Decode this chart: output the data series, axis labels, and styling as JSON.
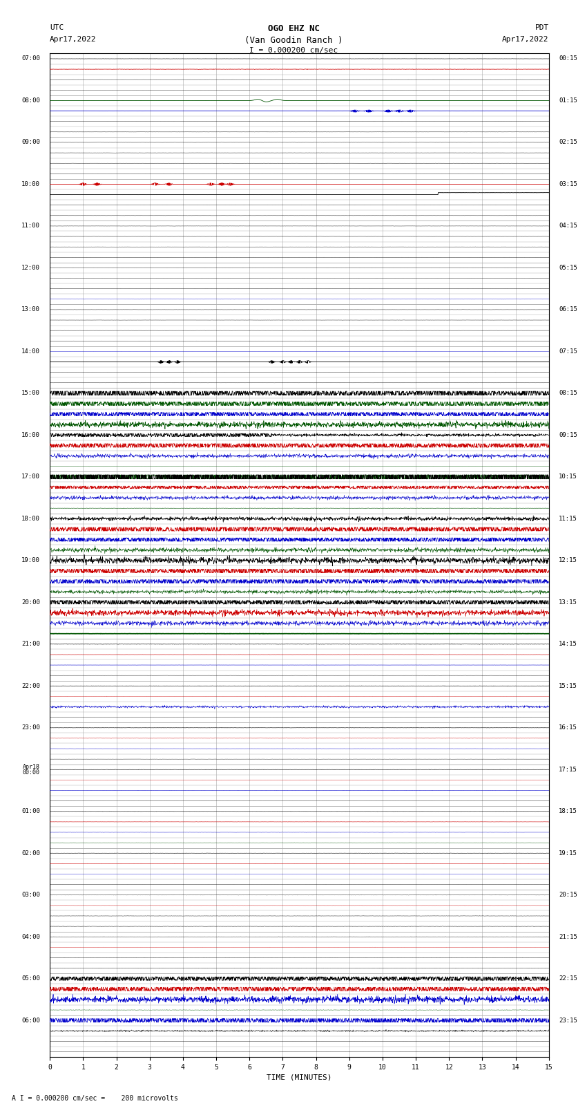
{
  "title_line1": "OGO EHZ NC",
  "title_line2": "(Van Goodin Ranch )",
  "scale_label": "I = 0.000200 cm/sec",
  "bottom_label": "A I = 0.000200 cm/sec =    200 microvolts",
  "utc_left1": "UTC",
  "utc_left2": "Apr17,2022",
  "pdt_right1": "PDT",
  "pdt_right2": "Apr17,2022",
  "xlabel": "TIME (MINUTES)",
  "background_color": "#ffffff",
  "fig_width": 8.5,
  "fig_height": 16.13,
  "dpi": 100,
  "minutes_per_row": 15,
  "colors": {
    "black": "#000000",
    "red": "#cc0000",
    "blue": "#0000cc",
    "green": "#005500",
    "grid": "#aaaaaa",
    "grid_minor": "#cccccc"
  }
}
